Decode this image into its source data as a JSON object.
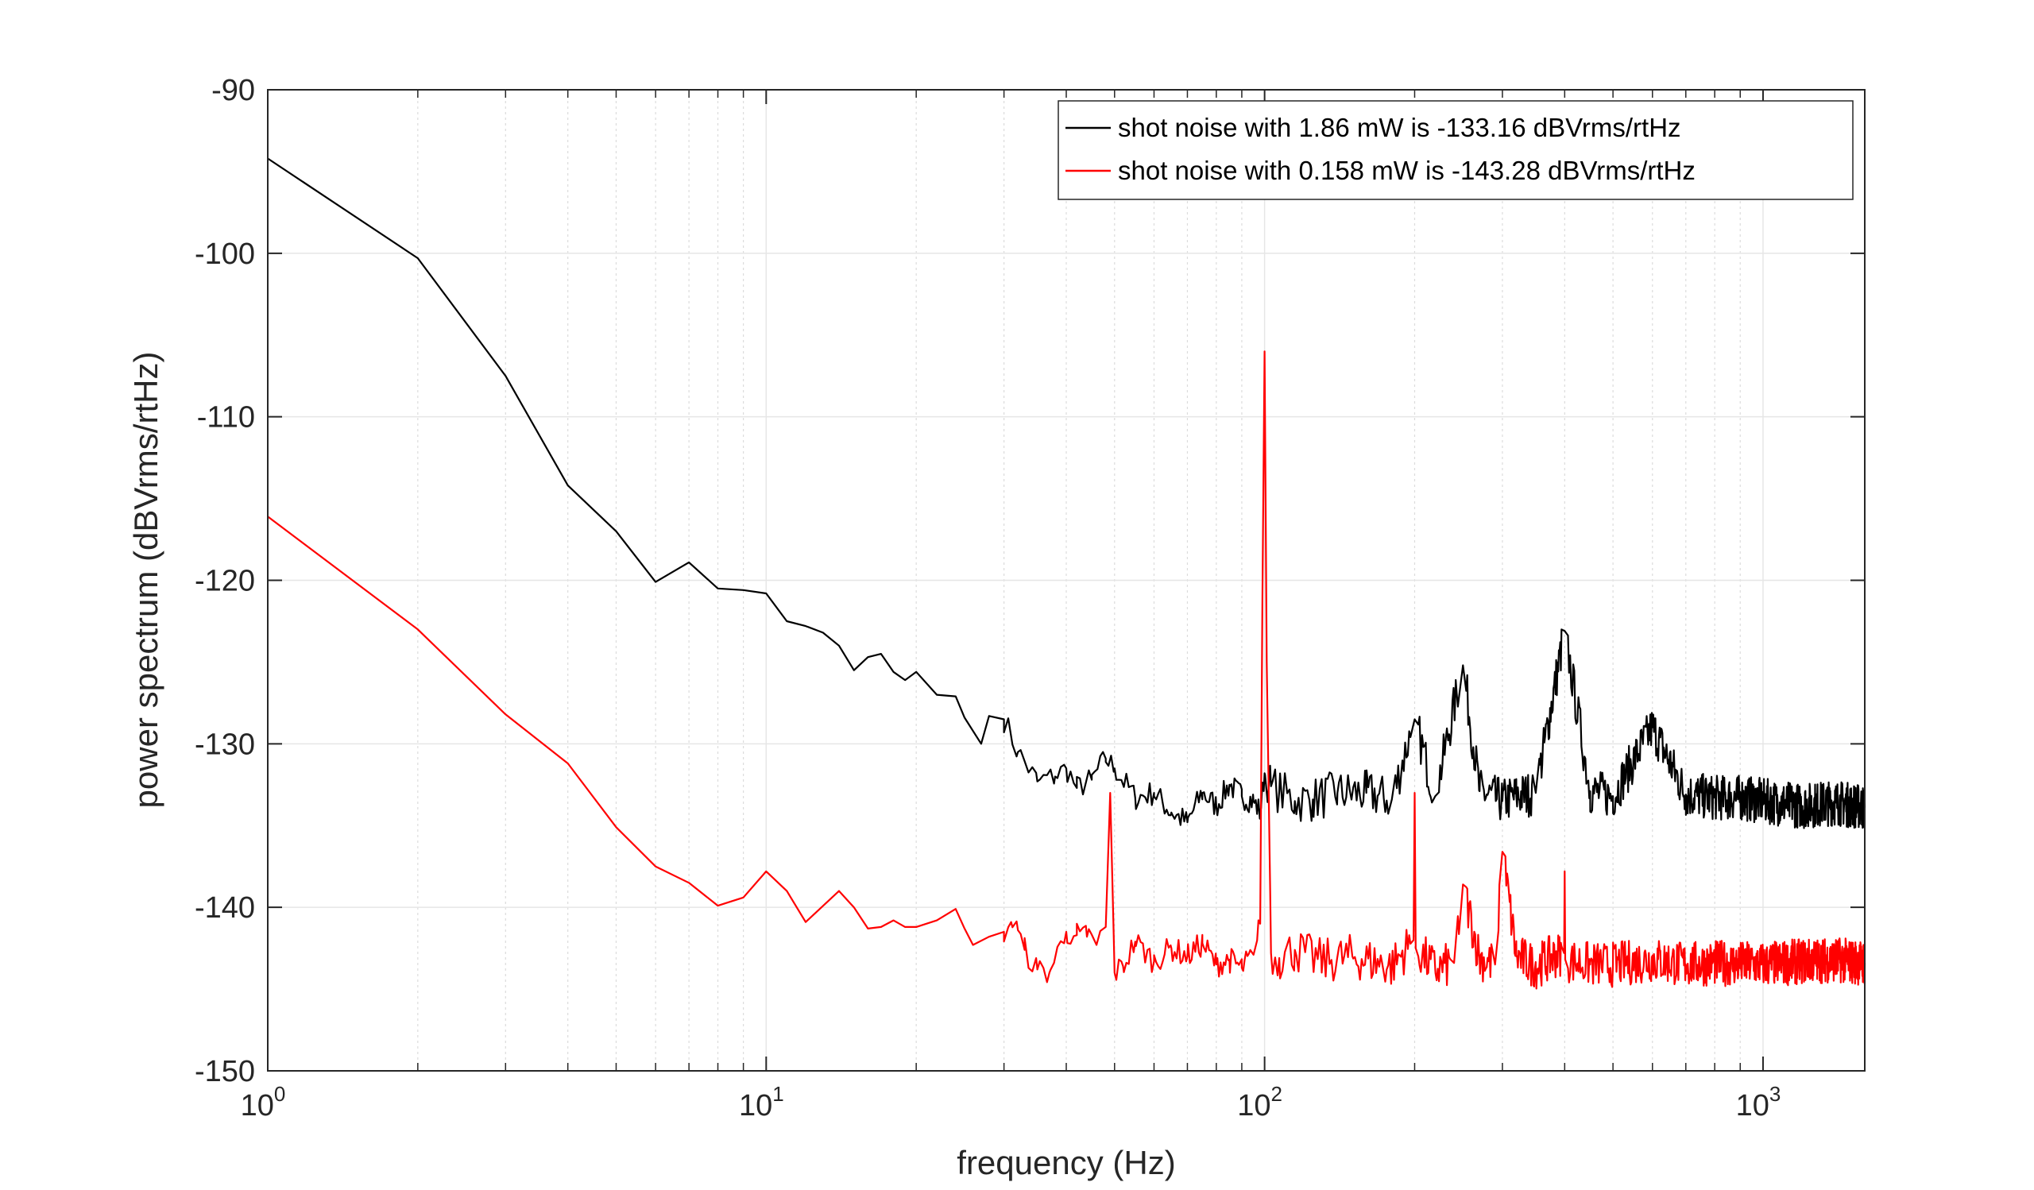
{
  "chart_data": {
    "type": "line",
    "title": "",
    "xlabel": "frequency (Hz)",
    "ylabel": "power spectrum (dBVrms/rtHz)",
    "xscale": "log",
    "xlim": [
      1,
      1600
    ],
    "ylim": [
      -150,
      -90
    ],
    "xticks": [
      {
        "base": "10",
        "exp": "0",
        "value": 1
      },
      {
        "base": "10",
        "exp": "1",
        "value": 10
      },
      {
        "base": "10",
        "exp": "2",
        "value": 100
      },
      {
        "base": "10",
        "exp": "3",
        "value": 1000
      }
    ],
    "yticks": [
      {
        "label": "-90",
        "value": -90
      },
      {
        "label": "-100",
        "value": -100
      },
      {
        "label": "-110",
        "value": -110
      },
      {
        "label": "-120",
        "value": -120
      },
      {
        "label": "-130",
        "value": -130
      },
      {
        "label": "-140",
        "value": -140
      },
      {
        "label": "-150",
        "value": -150
      }
    ],
    "grid": true,
    "legend_position": "top-right",
    "series": [
      {
        "name": "shot noise with 1.86 mW is -133.16 dBVrms/rtHz",
        "color": "#000000",
        "x": [
          1,
          2,
          3,
          4,
          5,
          6,
          7,
          8,
          9,
          10,
          11,
          12,
          13,
          14,
          15,
          16,
          17,
          18,
          19,
          20,
          22,
          24,
          25,
          27,
          28,
          30,
          32,
          35,
          38,
          40,
          42,
          45,
          48,
          50,
          55,
          60,
          65,
          70,
          75,
          80,
          85,
          90,
          95,
          98,
          100,
          103,
          107,
          115,
          125,
          140,
          160,
          180,
          200,
          220,
          250,
          270,
          300,
          320,
          350,
          400,
          450,
          500,
          600,
          700,
          800,
          900,
          1000,
          1200,
          1400,
          1600
        ],
        "y": [
          -94.2,
          -100.3,
          -107.5,
          -114.2,
          -117,
          -120.1,
          -118.9,
          -120.5,
          -120.6,
          -120.8,
          -122.5,
          -122.8,
          -123.2,
          -124,
          -125.5,
          -124.7,
          -124.5,
          -125.6,
          -126.1,
          -125.6,
          -127,
          -127.1,
          -128.4,
          -130,
          -128.3,
          -128.5,
          -130.5,
          -132.3,
          -132,
          -131.5,
          -132.7,
          -132.2,
          -130.9,
          -131.5,
          -133.3,
          -133,
          -134.2,
          -134.8,
          -133,
          -133.8,
          -132.5,
          -133.2,
          -133.5,
          -134.2,
          -131.8,
          -132.6,
          -132.9,
          -133.5,
          -133.4,
          -133,
          -133,
          -133.4,
          -128.5,
          -133.2,
          -125.2,
          -132.9,
          -133.5,
          -133.2,
          -133,
          -123.1,
          -132.9,
          -133.2,
          -129,
          -133.1,
          -133.3,
          -133.3,
          -133.5,
          -133.8,
          -133.6,
          -133.9
        ]
      },
      {
        "name": "shot noise with 0.158 mW is -143.28 dBVrms/rtHz",
        "color": "#ff0000",
        "x": [
          1,
          2,
          3,
          4,
          5,
          6,
          7,
          8,
          9,
          10,
          11,
          12,
          14,
          15,
          16,
          17,
          18,
          19,
          20,
          22,
          24,
          25,
          26,
          28,
          30,
          31,
          32,
          33,
          35,
          37,
          40,
          42,
          44,
          46,
          48,
          49,
          50,
          52,
          55,
          60,
          65,
          70,
          75,
          80,
          85,
          90,
          95,
          98,
          99,
          100,
          101,
          103,
          107,
          115,
          130,
          150,
          180,
          199,
          200,
          201,
          220,
          240,
          250,
          270,
          290,
          300,
          320,
          350,
          380,
          399,
          400,
          401,
          450,
          500,
          600,
          700,
          800,
          1000,
          1200,
          1400,
          1600
        ],
        "y": [
          -116.1,
          -123,
          -128.2,
          -131.2,
          -135.1,
          -137.5,
          -138.5,
          -139.9,
          -139.4,
          -137.8,
          -139,
          -140.9,
          -139,
          -140,
          -141.3,
          -141.2,
          -140.8,
          -141.2,
          -141.2,
          -140.8,
          -140.1,
          -141.3,
          -142.3,
          -141.8,
          -141.5,
          -140.9,
          -141.4,
          -142.6,
          -143.8,
          -144,
          -141.5,
          -141.7,
          -141.8,
          -142.3,
          -141.2,
          -133,
          -144,
          -143.6,
          -142.1,
          -143.3,
          -142.5,
          -143,
          -142.2,
          -143.5,
          -143.2,
          -143.7,
          -142.9,
          -141,
          -121,
          -106,
          -125,
          -142.8,
          -143.1,
          -142.6,
          -143.3,
          -143,
          -143.6,
          -142,
          -133,
          -142.5,
          -143.8,
          -143.4,
          -138.6,
          -143.1,
          -143.5,
          -136.6,
          -143,
          -143.6,
          -143,
          -142.8,
          -137.8,
          -143.2,
          -143.5,
          -143.5,
          -143.2,
          -143.5,
          -143.4,
          -143.5,
          -143.3,
          -143.2,
          -143.4
        ]
      }
    ]
  }
}
